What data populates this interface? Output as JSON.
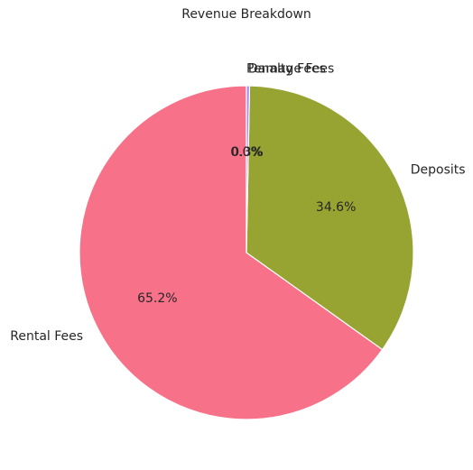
{
  "chart_data": {
    "type": "pie",
    "title": "Revenue Breakdown",
    "categories": [
      "Rental Fees",
      "Deposits",
      "Damage Fees",
      "Penalty Fees"
    ],
    "values": [
      65.2,
      34.6,
      0.3,
      0.0
    ],
    "value_labels": [
      "65.2%",
      "34.6%",
      "0.3%",
      "0.0%"
    ],
    "colors": [
      "#f77189",
      "#97a431",
      "#a48cf4",
      "#3ba3ec"
    ],
    "start_angle_deg": 90,
    "direction": "counterclockwise",
    "legend": "none"
  }
}
